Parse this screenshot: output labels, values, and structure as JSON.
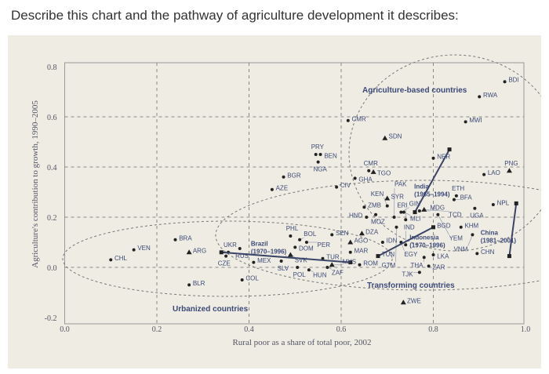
{
  "question": "Describe this chart and the pathway of agriculture development it describes:",
  "chart_data": {
    "type": "scatter",
    "title": "",
    "xlabel": "Rural poor as a share of total poor, 2002",
    "ylabel": "Agriculture's contribution to growth, 1990–2005",
    "xlim": [
      0,
      1.0
    ],
    "ylim": [
      -0.2,
      0.8
    ],
    "xticks": [
      "0.0",
      "0.2",
      "0.4",
      "0.6",
      "0.8",
      "1.0"
    ],
    "yticks": [
      "-0.2",
      "0.0",
      "0.2",
      "0.4",
      "0.6",
      "0.8"
    ],
    "grid": true,
    "groups": [
      "Agriculture-based countries",
      "Transforming countries",
      "Urbanized countries"
    ],
    "points": [
      {
        "c": "CHL",
        "x": 0.1,
        "y": 0.03
      },
      {
        "c": "VEN",
        "x": 0.15,
        "y": 0.07
      },
      {
        "c": "BRA",
        "x": 0.24,
        "y": 0.11
      },
      {
        "c": "ARG",
        "x": 0.27,
        "y": 0.06,
        "m": "tri"
      },
      {
        "c": "BLR",
        "x": 0.27,
        "y": -0.07
      },
      {
        "c": "UKR",
        "x": 0.355,
        "y": 0.06
      },
      {
        "c": "RUS",
        "x": 0.38,
        "y": 0.075
      },
      {
        "c": "CZE",
        "x": 0.35,
        "y": 0.045
      },
      {
        "c": "MEX",
        "x": 0.41,
        "y": 0.02
      },
      {
        "c": "COL",
        "x": 0.385,
        "y": -0.05
      },
      {
        "c": "BGR",
        "x": 0.475,
        "y": 0.36
      },
      {
        "c": "AZE",
        "x": 0.45,
        "y": 0.31
      },
      {
        "c": "PHL",
        "x": 0.49,
        "y": 0.125
      },
      {
        "c": "BOL",
        "x": 0.51,
        "y": 0.11
      },
      {
        "c": "DOM",
        "x": 0.5,
        "y": 0.08
      },
      {
        "c": "SVK",
        "x": 0.49,
        "y": 0.05,
        "m": "tri"
      },
      {
        "c": "SLV",
        "x": 0.47,
        "y": 0.025
      },
      {
        "c": "POL",
        "x": 0.505,
        "y": 0.0
      },
      {
        "c": "HUN",
        "x": 0.53,
        "y": -0.01
      },
      {
        "c": "PER",
        "x": 0.525,
        "y": 0.1
      },
      {
        "c": "TUR",
        "x": 0.56,
        "y": 0.035
      },
      {
        "c": "ZAF",
        "x": 0.57,
        "y": 0.0
      },
      {
        "c": "MYS",
        "x": 0.58,
        "y": 0.01,
        "m": "tri"
      },
      {
        "c": "ROM",
        "x": 0.64,
        "y": 0.01
      },
      {
        "c": "SEN",
        "x": 0.58,
        "y": 0.13
      },
      {
        "c": "DZA",
        "x": 0.645,
        "y": 0.135,
        "m": "tri"
      },
      {
        "c": "AGO",
        "x": 0.62,
        "y": 0.1,
        "m": "tri"
      },
      {
        "c": "MAR",
        "x": 0.62,
        "y": 0.06
      },
      {
        "c": "TUN",
        "x": 0.68,
        "y": 0.045
      },
      {
        "c": "IDN",
        "x": 0.69,
        "y": 0.1
      },
      {
        "c": "EGY",
        "x": 0.73,
        "y": 0.1
      },
      {
        "c": "IND",
        "x": 0.74,
        "y": 0.09
      },
      {
        "c": "THA",
        "x": 0.78,
        "y": 0.04
      },
      {
        "c": "LKA",
        "x": 0.8,
        "y": 0.05
      },
      {
        "c": "ZAR",
        "x": 0.79,
        "y": 0.005
      },
      {
        "c": "TJK",
        "x": 0.77,
        "y": -0.02
      },
      {
        "c": "BGD",
        "x": 0.8,
        "y": 0.16
      },
      {
        "c": "ZWE",
        "x": 0.735,
        "y": -0.14,
        "m": "tri"
      },
      {
        "c": "CMR",
        "x": 0.615,
        "y": 0.585
      },
      {
        "c": "SDN",
        "x": 0.695,
        "y": 0.515,
        "m": "tri"
      },
      {
        "c": "CMR",
        "x": 0.66,
        "y": 0.385
      },
      {
        "c": "TGO",
        "x": 0.67,
        "y": 0.38,
        "m": "tri"
      },
      {
        "c": "GHA",
        "x": 0.63,
        "y": 0.355
      },
      {
        "c": "CIV",
        "x": 0.59,
        "y": 0.32
      },
      {
        "c": "PRY",
        "x": 0.545,
        "y": 0.45
      },
      {
        "c": "BEN",
        "x": 0.555,
        "y": 0.45
      },
      {
        "c": "NGA",
        "x": 0.55,
        "y": 0.42
      },
      {
        "c": "NER",
        "x": 0.8,
        "y": 0.435
      },
      {
        "c": "SYR",
        "x": 0.7,
        "y": 0.275,
        "m": "tri"
      },
      {
        "c": "ZMB",
        "x": 0.65,
        "y": 0.24
      },
      {
        "c": "KEN",
        "x": 0.7,
        "y": 0.245
      },
      {
        "c": "MOZ",
        "x": 0.675,
        "y": 0.21
      },
      {
        "c": "GIN",
        "x": 0.73,
        "y": 0.22
      },
      {
        "c": "MLI",
        "x": 0.736,
        "y": 0.22
      },
      {
        "c": "MDG",
        "x": 0.77,
        "y": 0.225
      },
      {
        "c": "TCD",
        "x": 0.78,
        "y": 0.23,
        "m": "tri"
      },
      {
        "c": "HND",
        "x": 0.655,
        "y": 0.2
      },
      {
        "c": "PAK",
        "x": 0.715,
        "y": 0.2
      },
      {
        "c": "ERI",
        "x": 0.74,
        "y": 0.19
      },
      {
        "c": "GTM",
        "x": 0.72,
        "y": 0.16
      },
      {
        "c": "BFA",
        "x": 0.845,
        "y": 0.27
      },
      {
        "c": "ETH",
        "x": 0.85,
        "y": 0.285
      },
      {
        "c": "YEM",
        "x": 0.81,
        "y": 0.21
      },
      {
        "c": "KHM",
        "x": 0.86,
        "y": 0.16
      },
      {
        "c": "UGA",
        "x": 0.89,
        "y": 0.235
      },
      {
        "c": "NPL",
        "x": 0.93,
        "y": 0.25
      },
      {
        "c": "VNM",
        "x": 0.885,
        "y": 0.13
      },
      {
        "c": "CHN",
        "x": 0.895,
        "y": 0.055
      },
      {
        "c": "LAO",
        "x": 0.91,
        "y": 0.37
      },
      {
        "c": "PNG",
        "x": 0.965,
        "y": 0.385,
        "m": "tri"
      },
      {
        "c": "MWI",
        "x": 0.87,
        "y": 0.58
      },
      {
        "c": "RWA",
        "x": 0.9,
        "y": 0.68
      },
      {
        "c": "BDI",
        "x": 0.955,
        "y": 0.74
      }
    ],
    "trajectories": [
      {
        "name": "Brazil",
        "period": "(1970–1996)",
        "from": [
          0.34,
          0.06
        ],
        "to": [
          0.62,
          0.02
        ]
      },
      {
        "name": "India",
        "period": "(1965–1994)",
        "from": [
          0.835,
          0.47
        ],
        "to": [
          0.76,
          0.22
        ]
      },
      {
        "name": "Indonesia",
        "period": "(1970–1996)",
        "from": [
          0.68,
          0.045
        ],
        "to": [
          0.8,
          0.16
        ]
      },
      {
        "name": "China",
        "period": "(1981–2001)",
        "from": [
          0.98,
          0.255
        ],
        "to": [
          0.965,
          0.045
        ]
      }
    ]
  }
}
